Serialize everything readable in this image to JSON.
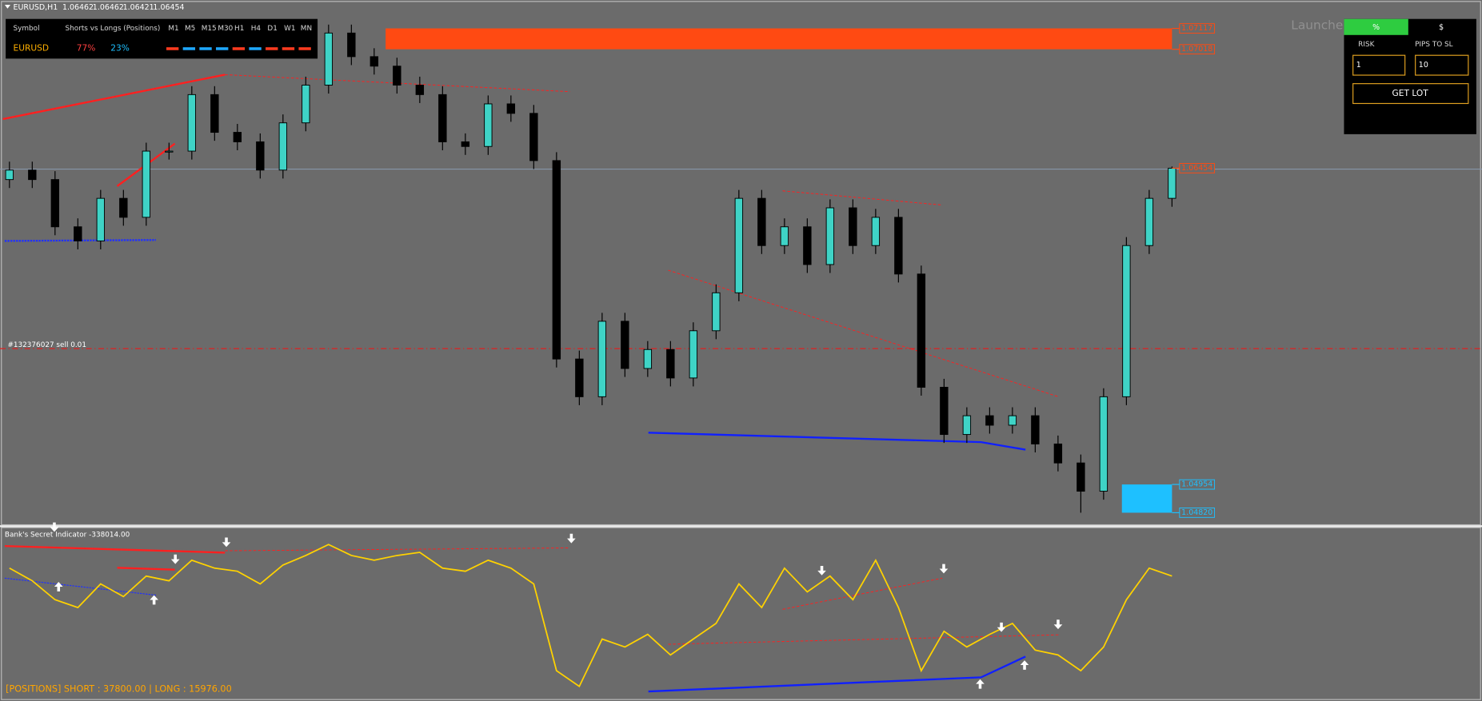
{
  "header": {
    "symbol": "EURUSD,H1",
    "prices": [
      1.06462,
      1.06462,
      1.06421,
      1.06454
    ]
  },
  "info_panel": {
    "symbol_header": "Symbol",
    "ratio_header": "Shorts vs Longs (Positions)",
    "timeframes": [
      "M1",
      "M5",
      "M15",
      "M30",
      "H1",
      "H4",
      "D1",
      "W1",
      "MN"
    ],
    "timeframe_colors": [
      "#ff3b1f",
      "#1ea8ff",
      "#1ea8ff",
      "#1ea8ff",
      "#ff3b1f",
      "#1ea8ff",
      "#ff3b1f",
      "#ff3b1f",
      "#ff3b1f"
    ],
    "symbol": "EURUSD",
    "shorts": "77%",
    "longs": "23%"
  },
  "launcher": {
    "title": "Launcher",
    "tab_percent": "%",
    "tab_dollar": "$",
    "risk_label": "RISK",
    "pips_label": "PIPS TO SL",
    "risk_value": "1",
    "pips_value": "10",
    "button": "GET LOT"
  },
  "order_label": "#132376027 sell 0.01",
  "chart_data": {
    "type": "candlestick",
    "ylim": [
      1.04765,
      1.07238
    ],
    "up_color": "#3fd3c6",
    "down_color": "#000000",
    "open": [
      1.064,
      1.06445,
      1.064,
      1.06176,
      1.06109,
      1.06311,
      1.06221,
      1.06535,
      1.06535,
      1.06803,
      1.06624,
      1.06579,
      1.06445,
      1.06669,
      1.06848,
      1.07095,
      1.06983,
      1.06938,
      1.06848,
      1.06803,
      1.06579,
      1.06557,
      1.06759,
      1.06714,
      1.0649,
      1.05549,
      1.0537,
      1.05728,
      1.05504,
      1.05594,
      1.05459,
      1.05683,
      1.05863,
      1.06311,
      1.06087,
      1.06176,
      1.05997,
      1.06266,
      1.06087,
      1.06221,
      1.05952,
      1.05415,
      1.05191,
      1.0528,
      1.05235,
      1.0528,
      1.05146,
      1.05056,
      1.04922,
      1.0537,
      1.06087,
      1.06311
    ],
    "high": [
      1.06485,
      1.06485,
      1.0644,
      1.06216,
      1.06351,
      1.06351,
      1.06575,
      1.06575,
      1.06843,
      1.06843,
      1.06664,
      1.06619,
      1.06709,
      1.06888,
      1.07135,
      1.07135,
      1.07023,
      1.06978,
      1.06888,
      1.06843,
      1.06619,
      1.06799,
      1.06799,
      1.06754,
      1.0653,
      1.05589,
      1.05768,
      1.05768,
      1.05634,
      1.05634,
      1.05723,
      1.05903,
      1.06351,
      1.06351,
      1.06216,
      1.06216,
      1.06306,
      1.06306,
      1.06261,
      1.06261,
      1.05992,
      1.05455,
      1.0532,
      1.0532,
      1.0532,
      1.0532,
      1.05186,
      1.05096,
      1.0541,
      1.06127,
      1.06351,
      1.06462
    ],
    "low": [
      1.0636,
      1.0636,
      1.06136,
      1.06069,
      1.06069,
      1.06181,
      1.06181,
      1.06495,
      1.06495,
      1.06584,
      1.06539,
      1.06405,
      1.06405,
      1.06629,
      1.06808,
      1.06943,
      1.06898,
      1.06808,
      1.06763,
      1.06539,
      1.06517,
      1.06517,
      1.06674,
      1.0645,
      1.05509,
      1.0533,
      1.0533,
      1.05464,
      1.05464,
      1.05419,
      1.05419,
      1.05643,
      1.05823,
      1.06047,
      1.06047,
      1.05957,
      1.05957,
      1.06047,
      1.06047,
      1.05912,
      1.05375,
      1.05151,
      1.05151,
      1.05195,
      1.05195,
      1.05106,
      1.05016,
      1.0482,
      1.04882,
      1.0533,
      1.06047,
      1.06271
    ],
    "close": [
      1.06445,
      1.064,
      1.06176,
      1.06109,
      1.06311,
      1.06221,
      1.06535,
      1.06535,
      1.06803,
      1.06624,
      1.06579,
      1.06445,
      1.06669,
      1.06848,
      1.07095,
      1.06983,
      1.06938,
      1.06848,
      1.06803,
      1.06579,
      1.06557,
      1.06759,
      1.06714,
      1.0649,
      1.05549,
      1.0537,
      1.05728,
      1.05504,
      1.05594,
      1.05459,
      1.05683,
      1.05863,
      1.06311,
      1.06087,
      1.06176,
      1.05997,
      1.06266,
      1.06087,
      1.06221,
      1.05952,
      1.05415,
      1.05191,
      1.0528,
      1.05235,
      1.0528,
      1.05146,
      1.05056,
      1.04922,
      1.0537,
      1.06087,
      1.06311,
      1.06454
    ],
    "price_labels": [
      1.07117,
      1.07018,
      1.06454,
      1.04954,
      {
        "value": 1.0482,
        "label": "1.04820"
      }
    ],
    "price_label_colors": [
      "#ff4a12",
      "#ff4a12",
      "#ff4a12",
      "#1ec0ff",
      "#1ec0ff"
    ]
  },
  "indicator": {
    "title": "Bank's Secret Indicator -338014.00",
    "color": "#ffd200",
    "ylim": [
      0,
      100
    ],
    "values": [
      80,
      72,
      60,
      55,
      70,
      62,
      75,
      72,
      85,
      80,
      78,
      70,
      82,
      88,
      95,
      88,
      85,
      88,
      90,
      80,
      78,
      85,
      80,
      70,
      15,
      5,
      35,
      30,
      38,
      25,
      35,
      45,
      70,
      55,
      80,
      65,
      75,
      60,
      85,
      55,
      15,
      40,
      30,
      38,
      45,
      28,
      25,
      15,
      30,
      60,
      80,
      75
    ],
    "positions": "[POSITIONS] SHORT : 37800.00   |   LONG : 15976.00"
  }
}
